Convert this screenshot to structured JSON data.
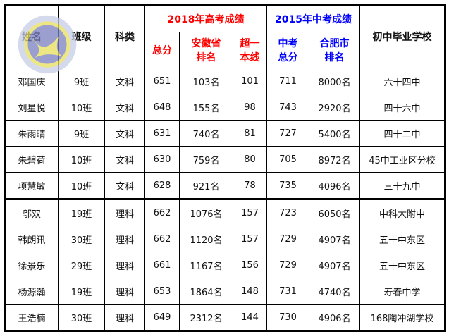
{
  "header": {
    "name": "姓名",
    "class": "班级",
    "subject": "科类",
    "gaokao_group": "2018年高考成绩",
    "zhongkao_group": "2015年中考成绩",
    "gaokao_total": "总分",
    "province_rank": "安徽省排名",
    "over_line": "超一本线",
    "zhongkao_total": "中考总分",
    "hefei_rank": "合肥市排名",
    "school": "初中毕业学校"
  },
  "colors": {
    "gaokao": "#ff0000",
    "zhongkao": "#0000ff"
  },
  "rows": [
    [
      "邓国庆",
      "9班",
      "文科",
      "651",
      "103名",
      "101",
      "711",
      "8000名",
      "六十四中"
    ],
    [
      "刘星悦",
      "10班",
      "文科",
      "648",
      "155名",
      "98",
      "743",
      "2920名",
      "四十六中"
    ],
    [
      "朱雨晴",
      "9班",
      "文科",
      "631",
      "740名",
      "81",
      "727",
      "5400名",
      "四十二中"
    ],
    [
      "朱碧荷",
      "10班",
      "文科",
      "630",
      "759名",
      "80",
      "705",
      "8972名",
      "45中工业区分校"
    ],
    [
      "项慧敏",
      "10班",
      "文科",
      "628",
      "921名",
      "78",
      "735",
      "4096名",
      "三十九中"
    ],
    [
      "邬双",
      "19班",
      "理科",
      "662",
      "1076名",
      "157",
      "723",
      "6050名",
      "中科大附中"
    ],
    [
      "韩朗讯",
      "30班",
      "理科",
      "662",
      "1120名",
      "157",
      "729",
      "4907名",
      "五十中东区"
    ],
    [
      "徐景乐",
      "29班",
      "理科",
      "661",
      "1167名",
      "156",
      "729",
      "4907名",
      "五十中东区"
    ],
    [
      "杨源瀚",
      "19班",
      "理科",
      "653",
      "1864名",
      "148",
      "731",
      "4740名",
      "寿春中学"
    ],
    [
      "王浩楠",
      "30班",
      "理科",
      "649",
      "2312名",
      "144",
      "730",
      "4906名",
      "168陶冲湖学校"
    ]
  ]
}
